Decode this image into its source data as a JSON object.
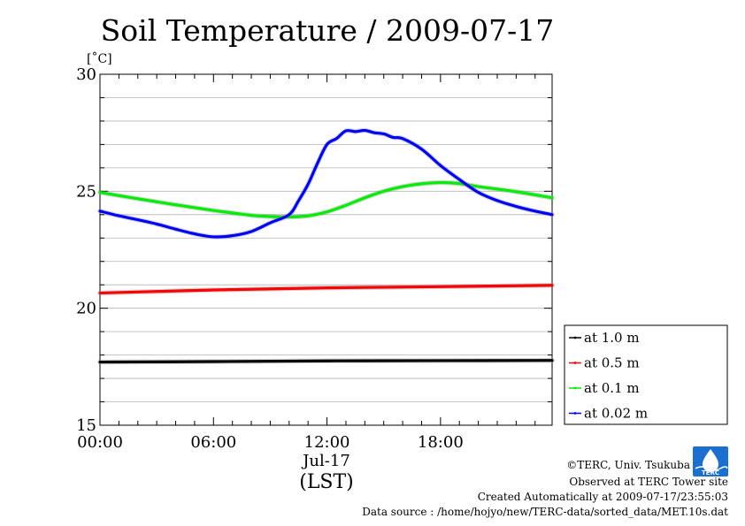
{
  "chart_data": {
    "type": "line",
    "title": "Soil Temperature / 2009-07-17",
    "y_unit": "[˚C]",
    "xlabel": "(LST)",
    "date_label": "Jul-17",
    "ylim": [
      15,
      30
    ],
    "y_ticks": [
      "15",
      "20",
      "25",
      "30"
    ],
    "y_tick_values": [
      15,
      20,
      25,
      30
    ],
    "xlim": [
      0,
      23.9
    ],
    "x_ticks": [
      "00:00",
      "06:00",
      "12:00",
      "18:00"
    ],
    "x_tick_values": [
      0,
      6,
      12,
      18
    ],
    "grid": true,
    "legend_position": "right",
    "series": [
      {
        "name": "at 1.0 m",
        "color": "#000000",
        "x": [
          0,
          6,
          12,
          18,
          23.9
        ],
        "y": [
          17.7,
          17.72,
          17.75,
          17.76,
          17.77
        ]
      },
      {
        "name": "at 0.5 m",
        "color": "#ff0000",
        "x": [
          0,
          6,
          12,
          18,
          23.9
        ],
        "y": [
          20.65,
          20.78,
          20.87,
          20.92,
          20.98
        ]
      },
      {
        "name": "at 0.1 m",
        "color": "#00ee00",
        "x": [
          0,
          2,
          4,
          6,
          8,
          9,
          10,
          11,
          12,
          13,
          14,
          15,
          16,
          17,
          18,
          19,
          20,
          22,
          23.9
        ],
        "y": [
          24.95,
          24.68,
          24.42,
          24.18,
          23.97,
          23.92,
          23.9,
          23.95,
          24.12,
          24.4,
          24.72,
          25.0,
          25.2,
          25.32,
          25.37,
          25.33,
          25.2,
          24.98,
          24.72
        ]
      },
      {
        "name": "at 0.02 m",
        "color": "#0000ff",
        "x": [
          0,
          1,
          2,
          3,
          4,
          5,
          6,
          7,
          8,
          9,
          10,
          10.5,
          11,
          11.5,
          12,
          12.5,
          13,
          13.5,
          14,
          14.5,
          15,
          15.5,
          16,
          17,
          18,
          19,
          20,
          21,
          22,
          23,
          23.9
        ],
        "y": [
          24.15,
          23.95,
          23.78,
          23.6,
          23.38,
          23.18,
          23.05,
          23.1,
          23.28,
          23.65,
          24.0,
          24.6,
          25.3,
          26.2,
          27.0,
          27.25,
          27.58,
          27.55,
          27.6,
          27.5,
          27.45,
          27.3,
          27.25,
          26.8,
          26.1,
          25.5,
          24.95,
          24.6,
          24.35,
          24.15,
          24.0
        ]
      }
    ]
  },
  "footer": {
    "copyright": "©TERC, Univ. Tsukuba",
    "observed": "Observed at TERC Tower site",
    "created": "Created Automatically at 2009-07-17/23:55:03",
    "source": "Data source : /home/hojyo/new/TERC-data/sorted_data/MET.10s.dat",
    "logo_text": "TERC"
  }
}
